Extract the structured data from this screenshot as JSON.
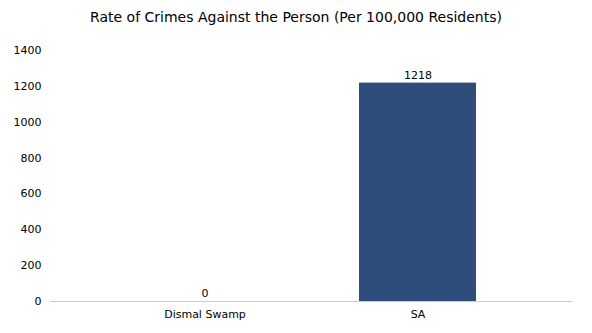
{
  "chart_data": {
    "type": "bar",
    "title": "Rate of Crimes Against the Person (Per 100,000 Residents)",
    "categories": [
      "Dismal Swamp",
      "SA"
    ],
    "values": [
      0,
      1218
    ],
    "color": "#2e4d7b",
    "ylim": [
      0,
      1400
    ],
    "yticks": [
      0,
      200,
      400,
      600,
      800,
      1000,
      1200,
      1400
    ],
    "grid": false,
    "data_labels": true
  }
}
